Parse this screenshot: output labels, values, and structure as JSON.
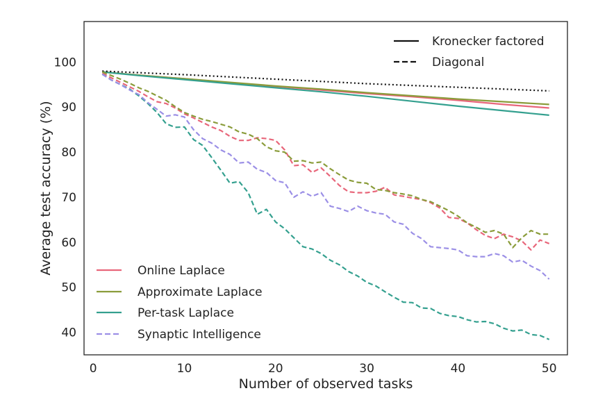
{
  "chart_data": {
    "type": "line",
    "xlabel": "Number of observed tasks",
    "ylabel": "Average test accuracy (%)",
    "xlim": [
      -1,
      52
    ],
    "ylim": [
      35,
      109
    ],
    "xticks": [
      0,
      10,
      20,
      30,
      40,
      50
    ],
    "yticks": [
      40,
      50,
      60,
      70,
      80,
      90,
      100
    ],
    "grid": false,
    "style_legend": {
      "placement": "top-right",
      "entries": [
        {
          "label": "Kronecker factored",
          "dash": "solid"
        },
        {
          "label": "Diagonal",
          "dash": "dashed"
        }
      ]
    },
    "method_legend": {
      "placement": "bottom-left",
      "entries": [
        {
          "label": "Online Laplace",
          "color": "#e8667a",
          "dash": "solid"
        },
        {
          "label": "Approximate Laplace",
          "color": "#8a9c3a",
          "dash": "solid"
        },
        {
          "label": "Per-task Laplace",
          "color": "#34a08f",
          "dash": "solid"
        },
        {
          "label": "Synaptic Intelligence",
          "color": "#9b8fe6",
          "dash": "dashed"
        }
      ]
    },
    "series": [
      {
        "color": "#e8667a",
        "dash": "solid",
        "x": [
          1,
          5,
          10,
          15,
          20,
          25,
          30,
          35,
          40,
          45,
          50
        ],
        "y": [
          97.8,
          97.1,
          96.3,
          95.4,
          94.6,
          93.8,
          93.0,
          92.3,
          91.5,
          90.6,
          89.8
        ]
      },
      {
        "color": "#8a9c3a",
        "dash": "solid",
        "x": [
          1,
          5,
          10,
          15,
          20,
          25,
          30,
          35,
          40,
          45,
          50
        ],
        "y": [
          97.8,
          97.1,
          96.3,
          95.5,
          94.7,
          94.0,
          93.2,
          92.5,
          91.8,
          91.2,
          90.6
        ]
      },
      {
        "color": "#34a08f",
        "dash": "solid",
        "x": [
          1,
          5,
          10,
          15,
          20,
          25,
          30,
          35,
          40,
          45,
          50
        ],
        "y": [
          97.8,
          97.0,
          96.1,
          95.2,
          94.3,
          93.4,
          92.4,
          91.3,
          90.2,
          89.2,
          88.2
        ]
      },
      {
        "color": "#111111",
        "dash": "dotted",
        "x": [
          1,
          10,
          20,
          30,
          40,
          50
        ],
        "y": [
          98.0,
          97.2,
          96.2,
          95.2,
          94.4,
          93.6
        ]
      },
      {
        "color": "#e8667a",
        "dash": "dashed",
        "x": [
          1,
          2,
          3,
          4,
          5,
          6,
          7,
          8,
          9,
          10,
          11,
          12,
          13,
          14,
          15,
          16,
          17,
          18,
          19,
          20,
          21,
          22,
          23,
          24,
          25,
          26,
          27,
          28,
          29,
          30,
          31,
          32,
          33,
          34,
          35,
          36,
          37,
          38,
          39,
          40,
          41,
          42,
          43,
          44,
          45,
          46,
          47,
          48,
          49,
          50
        ],
        "y": [
          97.5,
          96.5,
          95.5,
          94.5,
          93.5,
          92.3,
          91.2,
          90.8,
          89.8,
          88.5,
          87.6,
          86.6,
          85.6,
          84.8,
          83.5,
          82.6,
          82.6,
          83.2,
          83.0,
          82.6,
          80.5,
          77.0,
          77.2,
          75.5,
          76.5,
          74.6,
          72.6,
          71.2,
          71.0,
          71.0,
          71.3,
          72.2,
          70.5,
          70.2,
          69.8,
          69.5,
          68.8,
          67.6,
          65.5,
          65.3,
          64.3,
          62.8,
          61.5,
          60.8,
          61.8,
          61.2,
          60.3,
          58.3,
          60.5,
          59.7
        ]
      },
      {
        "color": "#8a9c3a",
        "dash": "dashed",
        "x": [
          1,
          2,
          3,
          4,
          5,
          6,
          7,
          8,
          9,
          10,
          11,
          12,
          13,
          14,
          15,
          16,
          17,
          18,
          19,
          20,
          21,
          22,
          23,
          24,
          25,
          26,
          27,
          28,
          29,
          30,
          31,
          32,
          33,
          34,
          35,
          36,
          37,
          38,
          39,
          40,
          41,
          42,
          43,
          44,
          45,
          46,
          47,
          48,
          49,
          50
        ],
        "y": [
          97.8,
          97.0,
          96.2,
          95.3,
          94.3,
          93.5,
          92.5,
          91.5,
          90.1,
          88.8,
          88.0,
          87.3,
          86.8,
          86.2,
          85.6,
          84.5,
          84.0,
          83.0,
          81.2,
          80.3,
          80.0,
          78.0,
          78.1,
          77.6,
          77.8,
          76.3,
          75.0,
          73.8,
          73.3,
          73.1,
          71.7,
          71.5,
          71.0,
          70.7,
          70.3,
          69.5,
          69.0,
          68.0,
          67.0,
          65.8,
          64.3,
          63.3,
          62.2,
          62.6,
          61.8,
          58.8,
          61.0,
          62.6,
          61.8,
          61.8
        ]
      },
      {
        "color": "#34a08f",
        "dash": "dashed",
        "x": [
          1,
          2,
          3,
          4,
          5,
          6,
          7,
          8,
          9,
          10,
          11,
          12,
          13,
          14,
          15,
          16,
          17,
          18,
          19,
          20,
          21,
          22,
          23,
          24,
          25,
          26,
          27,
          28,
          29,
          30,
          31,
          32,
          33,
          34,
          35,
          36,
          37,
          38,
          39,
          40,
          41,
          42,
          43,
          44,
          45,
          46,
          47,
          48,
          49,
          50
        ],
        "y": [
          97.3,
          96.0,
          95.0,
          94.0,
          92.5,
          90.8,
          88.8,
          86.3,
          85.5,
          85.6,
          82.8,
          81.5,
          78.8,
          76.0,
          73.1,
          73.5,
          71.0,
          66.2,
          67.3,
          64.5,
          63.0,
          61.0,
          59.0,
          58.5,
          57.5,
          56.0,
          55.0,
          53.5,
          52.5,
          51.1,
          50.3,
          49.0,
          47.8,
          46.7,
          46.6,
          45.4,
          45.3,
          44.2,
          43.7,
          43.5,
          42.8,
          42.3,
          42.4,
          41.9,
          40.9,
          40.3,
          40.5,
          39.5,
          39.3,
          38.4
        ]
      },
      {
        "color": "#9b8fe6",
        "dash": "dashed",
        "x": [
          1,
          2,
          3,
          4,
          5,
          6,
          7,
          8,
          9,
          10,
          11,
          12,
          13,
          14,
          15,
          16,
          17,
          18,
          19,
          20,
          21,
          22,
          23,
          24,
          25,
          26,
          27,
          28,
          29,
          30,
          31,
          32,
          33,
          34,
          35,
          36,
          37,
          38,
          39,
          40,
          41,
          42,
          43,
          44,
          45,
          46,
          47,
          48,
          49,
          50
        ],
        "y": [
          97.3,
          96.0,
          95.0,
          93.8,
          92.8,
          91.0,
          89.5,
          88.0,
          88.3,
          87.8,
          85.0,
          83.0,
          82.0,
          80.5,
          79.5,
          77.6,
          77.8,
          76.2,
          75.5,
          73.7,
          73.2,
          70.0,
          71.2,
          70.2,
          71.0,
          68.0,
          67.5,
          66.8,
          68.0,
          67.0,
          66.5,
          66.2,
          64.5,
          64.0,
          62.0,
          60.8,
          59.0,
          58.8,
          58.6,
          58.3,
          57.0,
          56.8,
          56.8,
          57.5,
          57.0,
          55.6,
          56.0,
          54.7,
          53.7,
          51.8
        ]
      }
    ]
  }
}
